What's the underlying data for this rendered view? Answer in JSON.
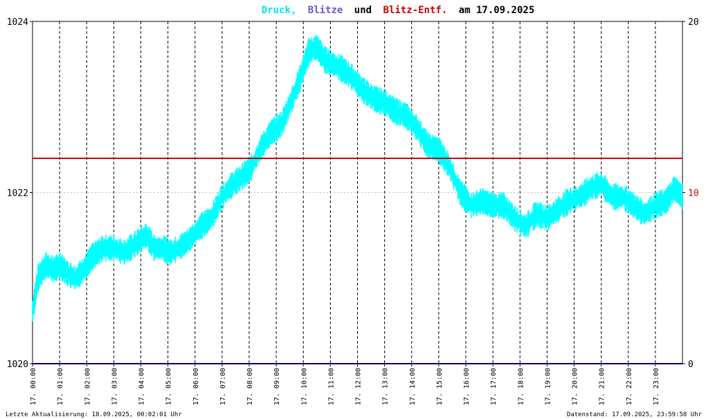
{
  "header": {
    "title_parts": [
      {
        "text": "Druck,",
        "color": "#00e5e5"
      },
      {
        "text": "Blitze",
        "color": "#6a5acd"
      },
      {
        "text": "und",
        "color": "#000000"
      },
      {
        "text": "Blitz-Entf.",
        "color": "#cc0000"
      },
      {
        "text": "am 17.09.2025",
        "color": "#000000"
      }
    ]
  },
  "footer": {
    "left": "Letzte Aktualisierung: 18.09.2025, 00:02:01 Uhr",
    "right": "Datenstand: 17.09.2025, 23:59:58 Uhr"
  },
  "colors": {
    "pressure": "#00ffff",
    "blitz_dist": "#cc0000",
    "blitze": "#000080",
    "grid": "#000000",
    "right_axis_mid": "#cc0000"
  },
  "chart_data": {
    "type": "line",
    "title": "Druck, Blitze und Blitz-Entf. am 17.09.2025",
    "x_unit": "hour",
    "x_range": [
      0,
      24
    ],
    "x_ticks": [
      "17. 00:00",
      "17. 01:00",
      "17. 02:00",
      "17. 03:00",
      "17. 04:00",
      "17. 05:00",
      "17. 06:00",
      "17. 07:00",
      "17. 08:00",
      "17. 09:00",
      "17. 10:00",
      "17. 11:00",
      "17. 12:00",
      "17. 13:00",
      "17. 14:00",
      "17. 15:00",
      "17. 16:00",
      "17. 17:00",
      "17. 18:00",
      "17. 19:00",
      "17. 20:00",
      "17. 21:00",
      "17. 22:00",
      "17. 23:00"
    ],
    "y_left": {
      "label": "",
      "range": [
        1020,
        1024
      ],
      "ticks": [
        "1020",
        "1022",
        "1024"
      ],
      "grid": "dotted"
    },
    "y_right": {
      "label": "",
      "range": [
        0,
        20
      ],
      "ticks": [
        "0",
        "10",
        "20"
      ]
    },
    "vertical_grid": "dashed",
    "series": [
      {
        "name": "Druck",
        "axis": "left",
        "color": "#00ffff",
        "points": [
          [
            0.0,
            1020.6
          ],
          [
            0.2,
            1021.0
          ],
          [
            0.5,
            1021.15
          ],
          [
            0.8,
            1021.1
          ],
          [
            1.0,
            1021.15
          ],
          [
            1.3,
            1021.05
          ],
          [
            1.6,
            1021.0
          ],
          [
            1.9,
            1021.1
          ],
          [
            2.2,
            1021.25
          ],
          [
            2.6,
            1021.35
          ],
          [
            3.0,
            1021.35
          ],
          [
            3.4,
            1021.3
          ],
          [
            3.8,
            1021.4
          ],
          [
            4.2,
            1021.5
          ],
          [
            4.5,
            1021.35
          ],
          [
            4.8,
            1021.35
          ],
          [
            5.1,
            1021.3
          ],
          [
            5.4,
            1021.35
          ],
          [
            5.8,
            1021.45
          ],
          [
            6.2,
            1021.6
          ],
          [
            6.6,
            1021.7
          ],
          [
            7.0,
            1021.95
          ],
          [
            7.4,
            1022.1
          ],
          [
            7.8,
            1022.2
          ],
          [
            8.1,
            1022.3
          ],
          [
            8.4,
            1022.5
          ],
          [
            8.8,
            1022.7
          ],
          [
            9.2,
            1022.8
          ],
          [
            9.6,
            1023.1
          ],
          [
            9.9,
            1023.35
          ],
          [
            10.2,
            1023.65
          ],
          [
            10.5,
            1023.7
          ],
          [
            10.8,
            1023.55
          ],
          [
            11.1,
            1023.5
          ],
          [
            11.4,
            1023.45
          ],
          [
            11.8,
            1023.35
          ],
          [
            12.2,
            1023.2
          ],
          [
            12.6,
            1023.1
          ],
          [
            13.0,
            1023.05
          ],
          [
            13.4,
            1022.95
          ],
          [
            13.8,
            1022.9
          ],
          [
            14.2,
            1022.75
          ],
          [
            14.6,
            1022.55
          ],
          [
            15.0,
            1022.5
          ],
          [
            15.4,
            1022.3
          ],
          [
            15.8,
            1022.0
          ],
          [
            16.2,
            1021.85
          ],
          [
            16.6,
            1021.9
          ],
          [
            17.0,
            1021.85
          ],
          [
            17.4,
            1021.85
          ],
          [
            17.8,
            1021.7
          ],
          [
            18.2,
            1021.6
          ],
          [
            18.6,
            1021.75
          ],
          [
            19.0,
            1021.7
          ],
          [
            19.4,
            1021.8
          ],
          [
            19.8,
            1021.9
          ],
          [
            20.2,
            1021.95
          ],
          [
            20.6,
            1022.05
          ],
          [
            21.0,
            1022.1
          ],
          [
            21.4,
            1021.95
          ],
          [
            21.8,
            1021.95
          ],
          [
            22.2,
            1021.85
          ],
          [
            22.6,
            1021.75
          ],
          [
            23.0,
            1021.85
          ],
          [
            23.4,
            1021.9
          ],
          [
            23.7,
            1022.05
          ],
          [
            24.0,
            1021.95
          ]
        ]
      },
      {
        "name": "Blitz-Entf.",
        "axis": "right",
        "color": "#cc0000",
        "constant": 12
      },
      {
        "name": "Blitze",
        "axis": "right",
        "color": "#000080",
        "constant": 0
      }
    ]
  }
}
